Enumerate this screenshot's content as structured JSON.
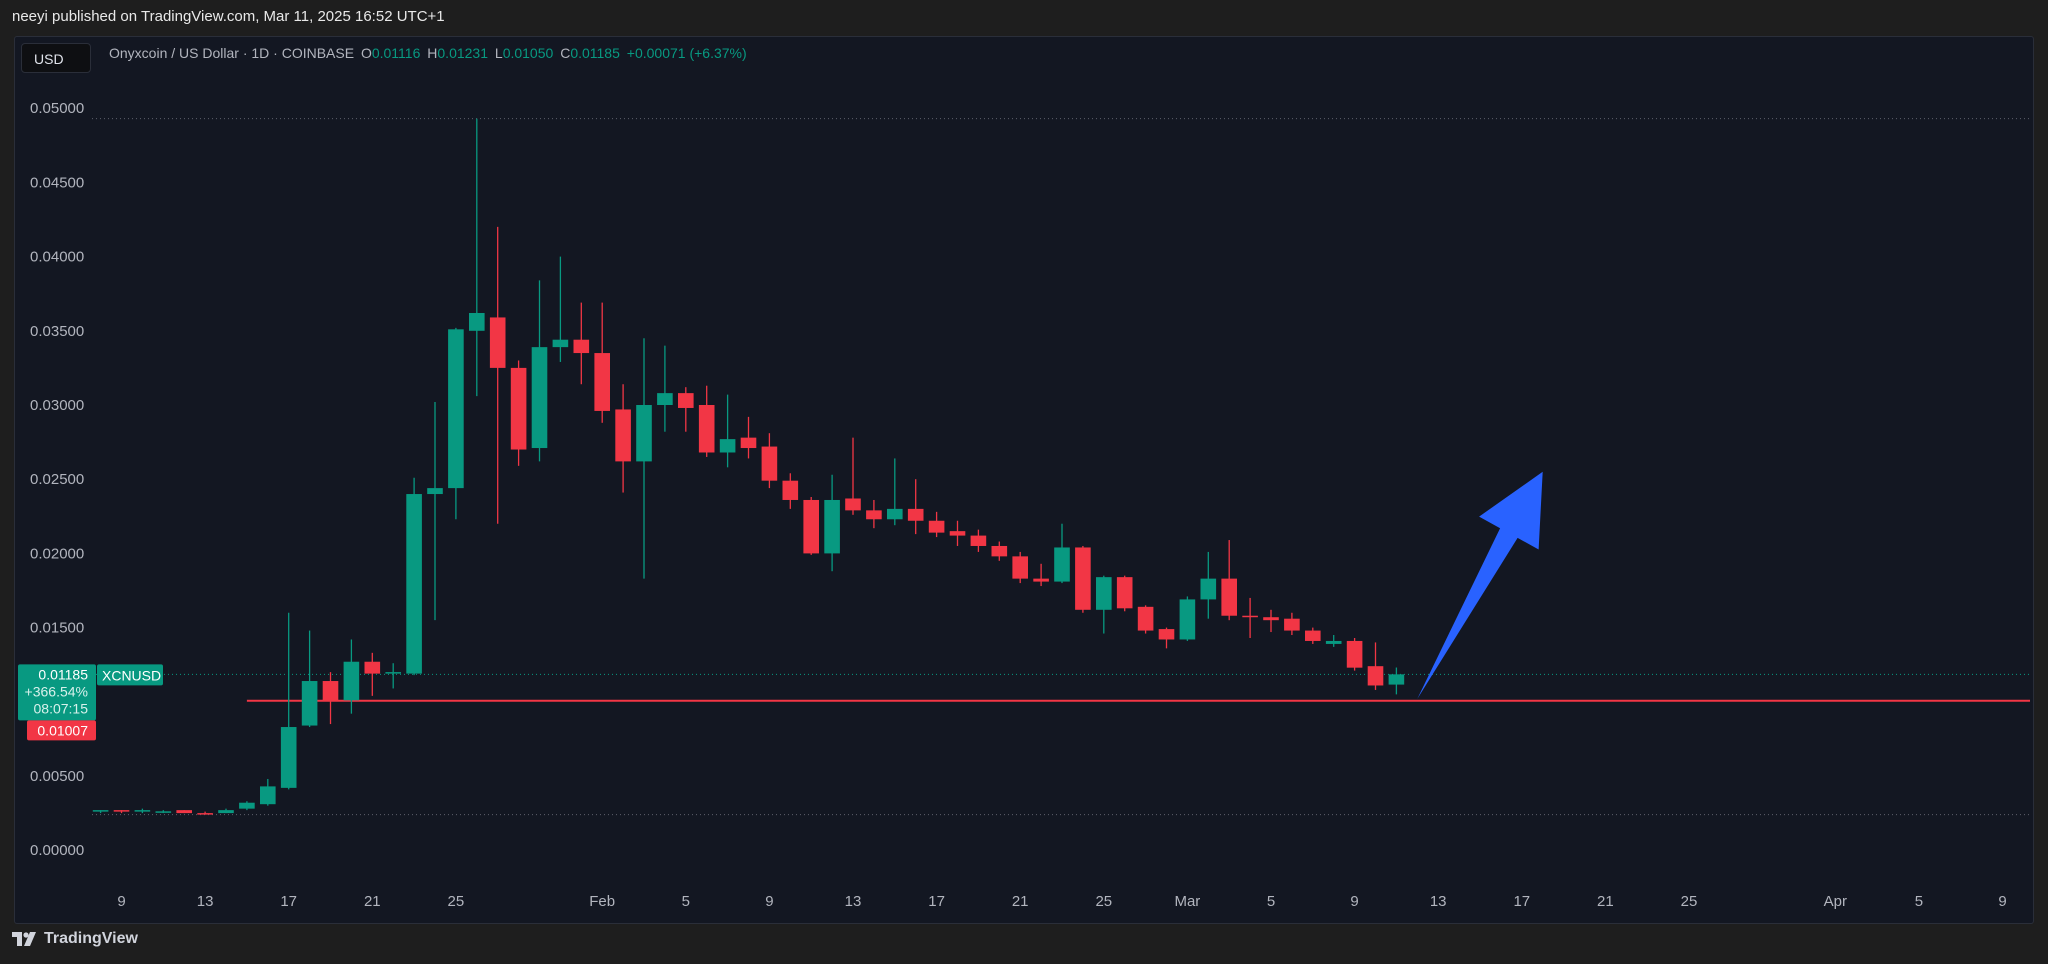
{
  "publish_info": "neeyi published on TradingView.com, Mar 11, 2025 16:52 UTC+1",
  "currency_button": "USD",
  "legend": {
    "symbol": "Onyxcoin / US Dollar · 1D · COINBASE",
    "o_label": "O",
    "o": "0.01116",
    "h_label": "H",
    "h": "0.01231",
    "l_label": "L",
    "l": "0.01050",
    "c_label": "C",
    "c": "0.01185",
    "change": "+0.00071 (+6.37%)"
  },
  "price_tags": {
    "last": "0.01185",
    "pct": "+366.54%",
    "countdown": "08:07:15",
    "ticker": "XCNUSD",
    "line_level": "0.01007"
  },
  "footer": {
    "brand": "TradingView"
  },
  "colors": {
    "up": "#089981",
    "down": "#f23645",
    "arrow": "#2962ff",
    "support": "#f23645",
    "bg": "#131722"
  },
  "chart_data": {
    "type": "candlestick",
    "ylim": [
      0,
      0.05
    ],
    "y_ticks": [
      "0.05000",
      "0.04500",
      "0.04000",
      "0.03500",
      "0.03000",
      "0.02500",
      "0.02000",
      "0.01500",
      "0.01000",
      "0.00500",
      "0.00000"
    ],
    "x_ticks": [
      {
        "label": "9",
        "date": "2025-01-09"
      },
      {
        "label": "13",
        "date": "2025-01-13"
      },
      {
        "label": "17",
        "date": "2025-01-17"
      },
      {
        "label": "21",
        "date": "2025-01-21"
      },
      {
        "label": "25",
        "date": "2025-01-25"
      },
      {
        "label": "Feb",
        "date": "2025-02-01"
      },
      {
        "label": "5",
        "date": "2025-02-05"
      },
      {
        "label": "9",
        "date": "2025-02-09"
      },
      {
        "label": "13",
        "date": "2025-02-13"
      },
      {
        "label": "17",
        "date": "2025-02-17"
      },
      {
        "label": "21",
        "date": "2025-02-21"
      },
      {
        "label": "25",
        "date": "2025-02-25"
      },
      {
        "label": "Mar",
        "date": "2025-03-01"
      },
      {
        "label": "5",
        "date": "2025-03-05"
      },
      {
        "label": "9",
        "date": "2025-03-09"
      },
      {
        "label": "13",
        "date": "2025-03-13"
      },
      {
        "label": "17",
        "date": "2025-03-17"
      },
      {
        "label": "21",
        "date": "2025-03-21"
      },
      {
        "label": "25",
        "date": "2025-03-25"
      },
      {
        "label": "Apr",
        "date": "2025-04-01"
      },
      {
        "label": "5",
        "date": "2025-04-05"
      },
      {
        "label": "9",
        "date": "2025-04-09"
      }
    ],
    "x_range": [
      "2025-01-08",
      "2025-04-10"
    ],
    "horizontal_line": 0.01007,
    "horizontal_line_start": "2025-01-15",
    "arrow": {
      "from": [
        "2025-03-12",
        0.0102
      ],
      "to": [
        "2025-03-18",
        0.0255
      ],
      "direction": "up"
    },
    "ohlc_columns": [
      "date",
      "open",
      "high",
      "low",
      "close"
    ],
    "ohlc": [
      [
        "2025-01-08",
        0.0026,
        0.0027,
        0.0025,
        0.0027
      ],
      [
        "2025-01-09",
        0.0027,
        0.0027,
        0.0025,
        0.0026
      ],
      [
        "2025-01-10",
        0.0026,
        0.0028,
        0.0025,
        0.0027
      ],
      [
        "2025-01-11",
        0.0026,
        0.0027,
        0.0025,
        0.00262
      ],
      [
        "2025-01-12",
        0.0027,
        0.0027,
        0.0025,
        0.0025
      ],
      [
        "2025-01-13",
        0.0025,
        0.0026,
        0.0024,
        0.00245
      ],
      [
        "2025-01-14",
        0.0025,
        0.0028,
        0.0025,
        0.0027
      ],
      [
        "2025-01-15",
        0.0028,
        0.0033,
        0.0027,
        0.0032
      ],
      [
        "2025-01-16",
        0.0031,
        0.0048,
        0.003,
        0.0043
      ],
      [
        "2025-01-17",
        0.0042,
        0.016,
        0.0041,
        0.0083
      ],
      [
        "2025-01-18",
        0.0084,
        0.0148,
        0.0083,
        0.0114
      ],
      [
        "2025-01-19",
        0.0114,
        0.012,
        0.0085,
        0.0101
      ],
      [
        "2025-01-20",
        0.0101,
        0.0142,
        0.0092,
        0.0127
      ],
      [
        "2025-01-21",
        0.0127,
        0.0133,
        0.0104,
        0.0119
      ],
      [
        "2025-01-22",
        0.0119,
        0.0126,
        0.0109,
        0.012
      ],
      [
        "2025-01-23",
        0.0119,
        0.0251,
        0.0118,
        0.024
      ],
      [
        "2025-01-24",
        0.024,
        0.0302,
        0.0155,
        0.0244
      ],
      [
        "2025-01-25",
        0.0244,
        0.0352,
        0.0223,
        0.0351
      ],
      [
        "2025-01-26",
        0.035,
        0.0493,
        0.0306,
        0.0362
      ],
      [
        "2025-01-27",
        0.0359,
        0.042,
        0.022,
        0.0325
      ],
      [
        "2025-01-28",
        0.0325,
        0.033,
        0.0259,
        0.027
      ],
      [
        "2025-01-29",
        0.0271,
        0.0384,
        0.0262,
        0.0339
      ],
      [
        "2025-01-30",
        0.0339,
        0.04,
        0.0329,
        0.0344
      ],
      [
        "2025-01-31",
        0.0344,
        0.0369,
        0.0314,
        0.0335
      ],
      [
        "2025-02-01",
        0.0335,
        0.0369,
        0.0288,
        0.0296
      ],
      [
        "2025-02-02",
        0.0297,
        0.0314,
        0.0241,
        0.0262
      ],
      [
        "2025-02-03",
        0.0262,
        0.0345,
        0.0183,
        0.03
      ],
      [
        "2025-02-04",
        0.03,
        0.034,
        0.0282,
        0.0308
      ],
      [
        "2025-02-05",
        0.0308,
        0.0312,
        0.0282,
        0.0298
      ],
      [
        "2025-02-06",
        0.03,
        0.0313,
        0.0265,
        0.0268
      ],
      [
        "2025-02-07",
        0.0268,
        0.0307,
        0.0258,
        0.0277
      ],
      [
        "2025-02-08",
        0.0278,
        0.0292,
        0.0264,
        0.0271
      ],
      [
        "2025-02-09",
        0.0272,
        0.0281,
        0.0244,
        0.0249
      ],
      [
        "2025-02-10",
        0.0249,
        0.0254,
        0.023,
        0.0236
      ],
      [
        "2025-02-11",
        0.0236,
        0.0238,
        0.0199,
        0.02
      ],
      [
        "2025-02-12",
        0.02,
        0.0253,
        0.0188,
        0.0236
      ],
      [
        "2025-02-13",
        0.0237,
        0.0278,
        0.0226,
        0.0229
      ],
      [
        "2025-02-14",
        0.0229,
        0.0236,
        0.0217,
        0.0223
      ],
      [
        "2025-02-15",
        0.0223,
        0.0264,
        0.0219,
        0.023
      ],
      [
        "2025-02-16",
        0.023,
        0.025,
        0.0213,
        0.0222
      ],
      [
        "2025-02-17",
        0.0222,
        0.0228,
        0.0211,
        0.0214
      ],
      [
        "2025-02-18",
        0.0215,
        0.0222,
        0.0205,
        0.0212
      ],
      [
        "2025-02-19",
        0.0212,
        0.0216,
        0.0201,
        0.0205
      ],
      [
        "2025-02-20",
        0.0205,
        0.0208,
        0.0195,
        0.0198
      ],
      [
        "2025-02-21",
        0.0198,
        0.0201,
        0.018,
        0.0183
      ],
      [
        "2025-02-22",
        0.0183,
        0.0193,
        0.0178,
        0.0181
      ],
      [
        "2025-02-23",
        0.0181,
        0.022,
        0.018,
        0.0204
      ],
      [
        "2025-02-24",
        0.0204,
        0.0205,
        0.016,
        0.0162
      ],
      [
        "2025-02-25",
        0.0162,
        0.0185,
        0.0146,
        0.0184
      ],
      [
        "2025-02-26",
        0.0184,
        0.0185,
        0.0161,
        0.0163
      ],
      [
        "2025-02-27",
        0.0164,
        0.0165,
        0.0146,
        0.0148
      ],
      [
        "2025-02-28",
        0.0149,
        0.015,
        0.0136,
        0.0142
      ],
      [
        "2025-03-01",
        0.0142,
        0.0171,
        0.0141,
        0.0169
      ],
      [
        "2025-03-02",
        0.0169,
        0.0201,
        0.0156,
        0.0183
      ],
      [
        "2025-03-03",
        0.0183,
        0.0209,
        0.0155,
        0.0158
      ],
      [
        "2025-03-04",
        0.0158,
        0.017,
        0.0143,
        0.0157
      ],
      [
        "2025-03-05",
        0.0157,
        0.0162,
        0.0147,
        0.0155
      ],
      [
        "2025-03-06",
        0.0156,
        0.016,
        0.0145,
        0.0148
      ],
      [
        "2025-03-07",
        0.0148,
        0.015,
        0.0139,
        0.0141
      ],
      [
        "2025-03-08",
        0.0139,
        0.0145,
        0.0137,
        0.0141
      ],
      [
        "2025-03-09",
        0.0141,
        0.0143,
        0.0121,
        0.0123
      ],
      [
        "2025-03-10",
        0.0124,
        0.014,
        0.0108,
        0.0111
      ],
      [
        "2025-03-11",
        0.01116,
        0.01231,
        0.0105,
        0.01185
      ]
    ]
  }
}
